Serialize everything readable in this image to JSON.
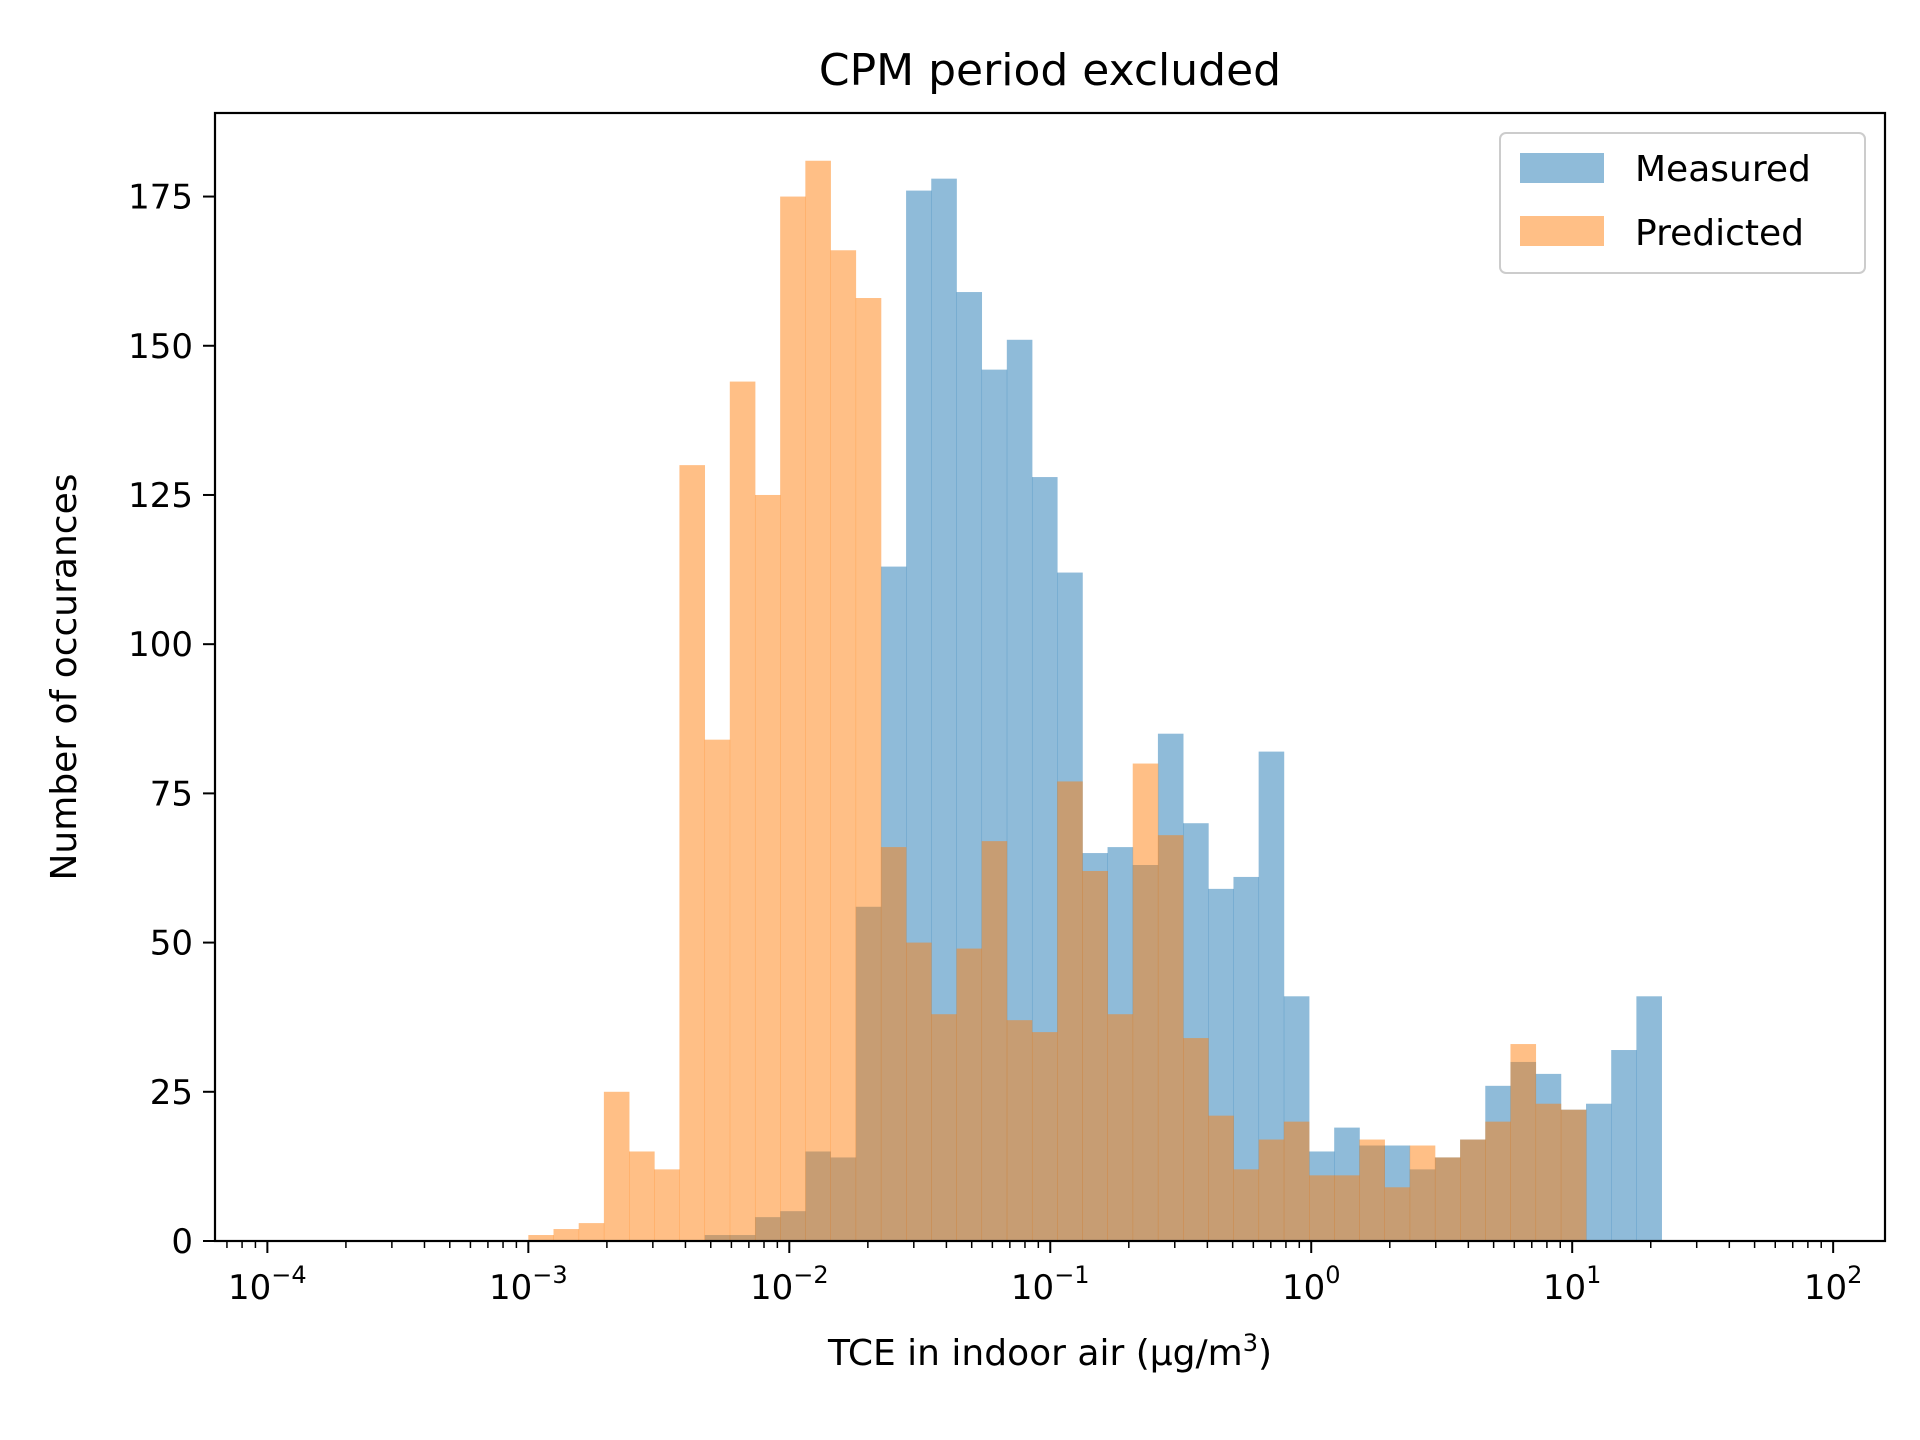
{
  "chart_data": {
    "type": "bar",
    "title": "CPM period excluded",
    "xlabel_prefix": "TCE in indoor air (μg/m",
    "xlabel_sup": "3",
    "xlabel_suffix": ")",
    "ylabel": "Number of occurances",
    "x_scale": "log",
    "xlim": [
      6.3e-05,
      158
    ],
    "ylim": [
      0,
      189
    ],
    "grid": false,
    "legend_position": "top-right",
    "x_ticks": [
      {
        "base": "10",
        "exp": "−4",
        "value": 0.0001
      },
      {
        "base": "10",
        "exp": "−3",
        "value": 0.001
      },
      {
        "base": "10",
        "exp": "−2",
        "value": 0.01
      },
      {
        "base": "10",
        "exp": "−1",
        "value": 0.1
      },
      {
        "base": "10",
        "exp": "0",
        "value": 1
      },
      {
        "base": "10",
        "exp": "1",
        "value": 10
      },
      {
        "base": "10",
        "exp": "2",
        "value": 100
      }
    ],
    "y_ticks": [
      "0",
      "25",
      "50",
      "75",
      "100",
      "125",
      "150",
      "175"
    ],
    "bin_edges_log10_start": -3.0,
    "bin_edges_log10_step": 0.0965,
    "series": [
      {
        "name": "Measured",
        "color": "#1f77b4",
        "opacity": 0.5,
        "values": [
          0,
          0,
          0,
          0,
          0,
          0,
          0,
          1,
          1,
          4,
          5,
          15,
          14,
          56,
          113,
          176,
          178,
          159,
          146,
          151,
          128,
          112,
          65,
          66,
          63,
          85,
          70,
          59,
          61,
          82,
          41,
          15,
          19,
          16,
          16,
          12,
          14,
          17,
          26,
          30,
          28,
          22,
          23,
          32,
          41
        ]
      },
      {
        "name": "Predicted",
        "color": "#ff7f0e",
        "opacity": 0.5,
        "values": [
          1,
          2,
          3,
          25,
          15,
          12,
          130,
          84,
          144,
          125,
          175,
          181,
          166,
          158,
          66,
          50,
          38,
          49,
          67,
          37,
          35,
          77,
          62,
          38,
          80,
          68,
          34,
          21,
          12,
          17,
          20,
          11,
          11,
          17,
          9,
          16,
          14,
          17,
          20,
          33,
          23,
          22,
          0,
          0,
          0
        ]
      }
    ]
  }
}
